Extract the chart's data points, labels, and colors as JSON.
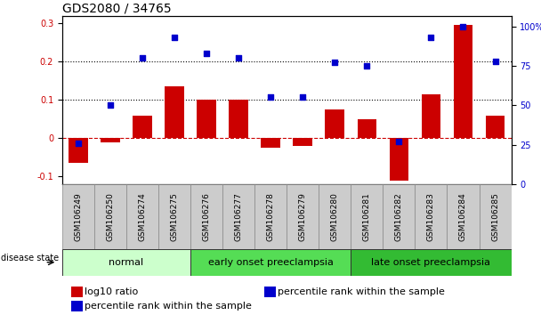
{
  "title": "GDS2080 / 34765",
  "categories": [
    "GSM106249",
    "GSM106250",
    "GSM106274",
    "GSM106275",
    "GSM106276",
    "GSM106277",
    "GSM106278",
    "GSM106279",
    "GSM106280",
    "GSM106281",
    "GSM106282",
    "GSM106283",
    "GSM106284",
    "GSM106285"
  ],
  "log10_ratio": [
    -0.065,
    -0.01,
    0.06,
    0.135,
    0.1,
    0.1,
    -0.025,
    -0.02,
    0.075,
    0.05,
    -0.11,
    0.115,
    0.295,
    0.06
  ],
  "percentile_rank": [
    26,
    50,
    80,
    93,
    83,
    80,
    55,
    55,
    77,
    75,
    27,
    93,
    100,
    78
  ],
  "bar_color": "#cc0000",
  "dot_color": "#0000cc",
  "ylim_left": [
    -0.12,
    0.32
  ],
  "ylim_right": [
    0,
    106.67
  ],
  "yticks_left": [
    -0.1,
    0.0,
    0.1,
    0.2,
    0.3
  ],
  "yticks_right": [
    0,
    25,
    50,
    75,
    100
  ],
  "yticklabels_right": [
    "0",
    "25",
    "50",
    "75",
    "100%"
  ],
  "hline_dashed_red": 0.0,
  "hline_dotted_black": [
    0.1,
    0.2
  ],
  "groups": [
    {
      "label": "normal",
      "start": 0,
      "end": 4,
      "color": "#ccffcc"
    },
    {
      "label": "early onset preeclampsia",
      "start": 4,
      "end": 9,
      "color": "#55dd55"
    },
    {
      "label": "late onset preeclampsia",
      "start": 9,
      "end": 14,
      "color": "#33bb33"
    }
  ],
  "disease_state_label": "disease state",
  "legend_items": [
    {
      "label": "log10 ratio",
      "color": "#cc0000"
    },
    {
      "label": "percentile rank within the sample",
      "color": "#0000cc"
    }
  ],
  "bar_width": 0.6,
  "bg_color": "#ffffff",
  "plot_bg_color": "#ffffff",
  "spine_color": "#000000",
  "title_fontsize": 10,
  "tick_fontsize": 7,
  "group_label_fontsize": 8,
  "legend_fontsize": 8
}
